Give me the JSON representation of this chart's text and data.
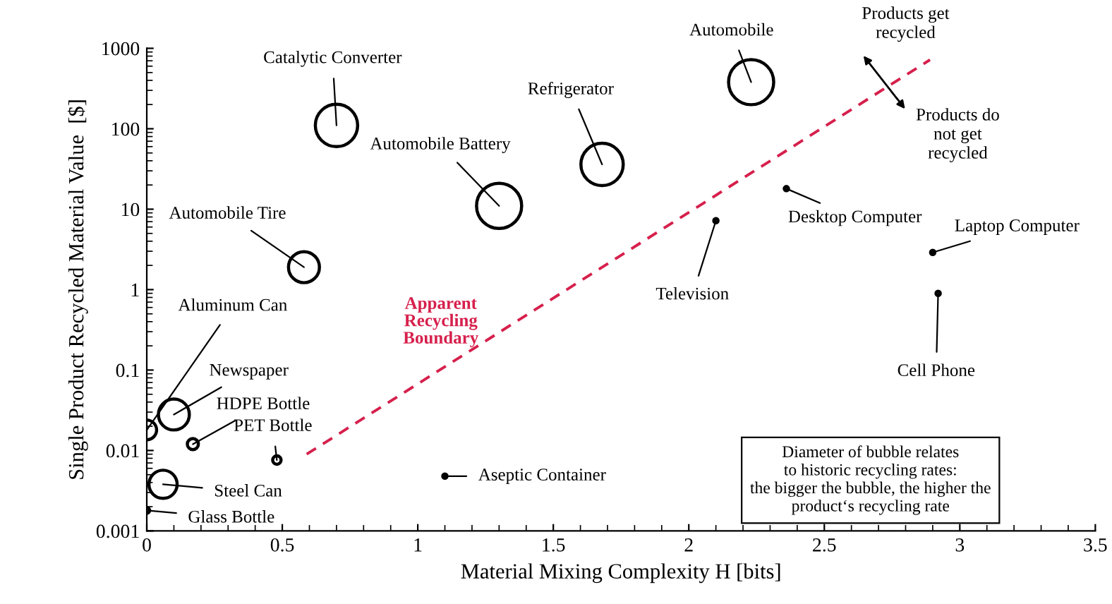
{
  "chart_data": {
    "type": "bubble",
    "xlabel": "Material Mixing Complexity H [bits]",
    "ylabel": "Single Product Recycled Material Value  [$]",
    "xlim": [
      0,
      3.5
    ],
    "xticks": [
      0,
      0.5,
      1,
      1.5,
      2,
      2.5,
      3,
      3.5
    ],
    "ylim": [
      0.001,
      1000
    ],
    "yticks": [
      0.001,
      0.01,
      0.1,
      1,
      10,
      100,
      1000
    ],
    "log": "y",
    "grid": false,
    "series": [
      {
        "marker": "circle",
        "color": "#000000",
        "x": [
          0.7,
          2.23,
          1.68,
          1.3,
          0.58,
          0,
          0.1,
          0.17,
          0.48,
          0.06,
          0,
          1.1,
          2.1,
          2.36,
          2.9,
          2.92
        ],
        "values": [
          110,
          380,
          36,
          11,
          1.9,
          0.018,
          0.028,
          0.012,
          0.0076,
          0.0038,
          0.0018,
          0.0048,
          7.2,
          18,
          2.9,
          0.9
        ],
        "sizes": [
          0.88,
          1,
          0.88,
          1,
          0.47,
          0.19,
          0.47,
          0.06,
          0.035,
          0.39,
          0.016,
          0.009,
          0.009,
          0.009,
          0.009,
          0.009
        ]
      },
      {
        "type": "line",
        "name": "Apparent Recycling Boundary",
        "color": "#d6204c",
        "line_style": "dashed",
        "x": [
          0.59,
          2.89
        ],
        "values": [
          0.009,
          720
        ]
      }
    ],
    "annotations": [
      {
        "text": "Catalytic Converter",
        "x": 0.7,
        "y": 110
      },
      {
        "text": "Automobile",
        "x": 2.23,
        "y": 380
      },
      {
        "text": "Refrigerator",
        "x": 1.68,
        "y": 36
      },
      {
        "text": "Automobile Battery",
        "x": 1.3,
        "y": 11
      },
      {
        "text": "Automobile Tire",
        "x": 0.58,
        "y": 1.9
      },
      {
        "text": "Aluminum Can",
        "x": 0,
        "y": 0.018
      },
      {
        "text": "Newspaper",
        "x": 0.1,
        "y": 0.028
      },
      {
        "text": "HDPE Bottle",
        "x": 0.17,
        "y": 0.012
      },
      {
        "text": "PET Bottle",
        "x": 0.48,
        "y": 0.0076
      },
      {
        "text": "Steel Can",
        "x": 0.06,
        "y": 0.0038
      },
      {
        "text": "Glass Bottle",
        "x": 0,
        "y": 0.0018
      },
      {
        "text": "Aseptic Container",
        "x": 1.1,
        "y": 0.0048
      },
      {
        "text": "Television",
        "x": 2.1,
        "y": 7.2
      },
      {
        "text": "Desktop Computer",
        "x": 2.36,
        "y": 18
      },
      {
        "text": "Laptop Computer",
        "x": 2.9,
        "y": 2.9
      },
      {
        "text": "Cell Phone",
        "x": 2.92,
        "y": 0.9
      },
      "Products get\nrecycled",
      "Products do\nnot get\nrecycled",
      "Diameter of bubble relates\nto historic recycling rates:\nthe bigger the bubble, the higher the\nproduct‘s recycling rate"
    ]
  }
}
